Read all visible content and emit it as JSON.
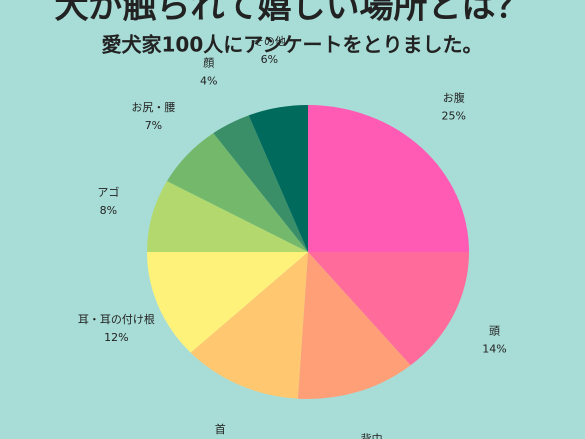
{
  "chart_data": {
    "type": "pie",
    "title": "犬が触られて嬉しい場所とは？",
    "subtitle": "愛犬家100人にアンケートをとりました。",
    "categories": [
      "お腹",
      "頭",
      "背中",
      "首",
      "耳・耳の付け根",
      "アゴ",
      "お尻・腰",
      "顔",
      "その他"
    ],
    "values": [
      25,
      14,
      12,
      12,
      12,
      8,
      7,
      4,
      6
    ],
    "value_labels": [
      "25%",
      "14%",
      null,
      null,
      "12%",
      "8%",
      "7%",
      "4%",
      "6%"
    ],
    "colors": [
      "#ff5ab4",
      "#ff6b9b",
      "#ff9f78",
      "#ffc870",
      "#fff27a",
      "#b3d96e",
      "#74b86c",
      "#3a8f68",
      "#006a5c"
    ]
  }
}
